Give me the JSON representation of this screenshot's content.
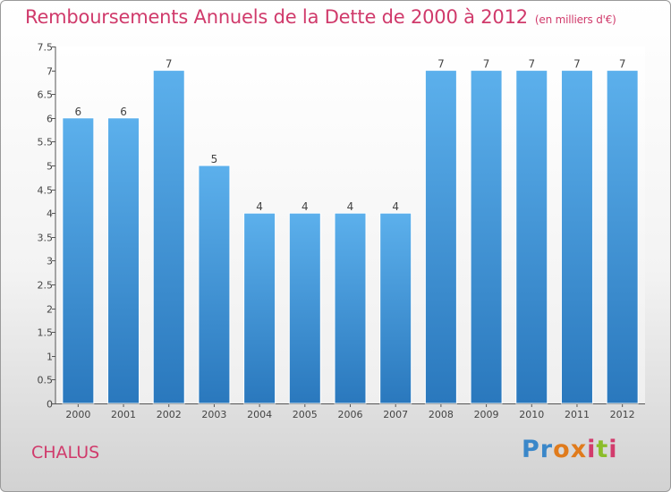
{
  "title": "Remboursements Annuels de la Dette de 2000 à 2012",
  "unit": "(en milliers d'€)",
  "commune": "CHALUS",
  "logo": {
    "text": "Proxiti",
    "colors": [
      "#3a87c9",
      "#8bbd2a",
      "#e07b1c",
      "#d23b6c"
    ]
  },
  "chart_data": {
    "type": "bar",
    "title": "Remboursements Annuels de la Dette de 2000 à 2012",
    "categories": [
      "2000",
      "2001",
      "2002",
      "2003",
      "2004",
      "2005",
      "2006",
      "2007",
      "2008",
      "2009",
      "2010",
      "2011",
      "2012"
    ],
    "values": [
      6,
      6,
      7,
      5,
      4,
      4,
      4,
      4,
      7,
      7,
      7,
      7,
      7
    ],
    "data_labels": [
      "6",
      "6",
      "7",
      "5",
      "4",
      "4",
      "4",
      "4",
      "7",
      "7",
      "7",
      "7",
      "7"
    ],
    "xlabel": "",
    "ylabel": "",
    "ylim": [
      0,
      7.5
    ],
    "yticks": [
      "0",
      "0.5",
      "1",
      "1.5",
      "2",
      "2.5",
      "3",
      "3.5",
      "4",
      "4.5",
      "5",
      "5.5",
      "6",
      "6.5",
      "7",
      "7.5"
    ],
    "bar_color": "#4a9fe0",
    "grid": false
  }
}
